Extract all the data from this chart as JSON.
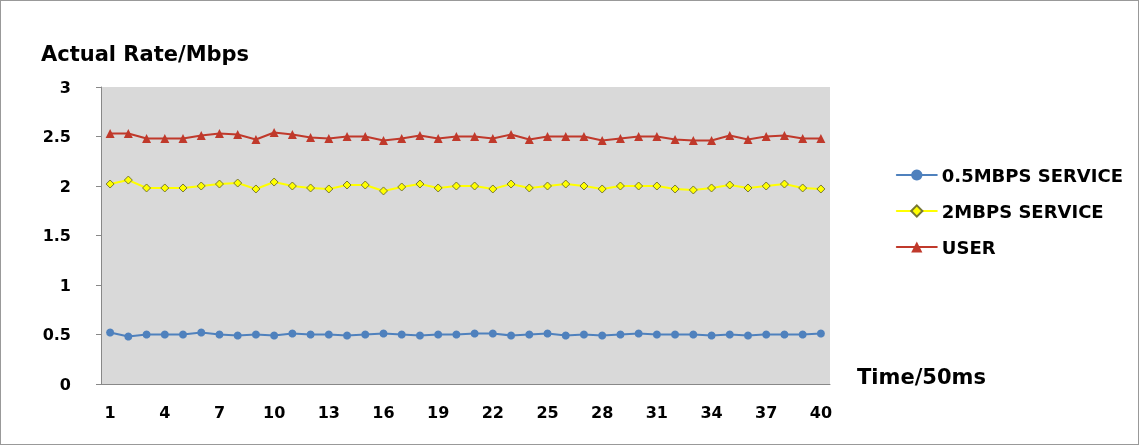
{
  "chart_data": {
    "type": "line",
    "ylabel": "Actual Rate/Mbps",
    "xlabel": "Time/50ms",
    "categories": [
      "1",
      null,
      null,
      "4",
      null,
      null,
      "7",
      null,
      null,
      "10",
      null,
      null,
      "13",
      null,
      null,
      "16",
      null,
      null,
      "19",
      null,
      null,
      "22",
      null,
      null,
      "25",
      null,
      null,
      "28",
      null,
      null,
      "31",
      null,
      null,
      "34",
      null,
      null,
      "37",
      null,
      null,
      "40"
    ],
    "series": [
      {
        "name": "0.5MBPS SERVICE",
        "color": "#4f81bd",
        "marker": "circle",
        "values": [
          0.52,
          0.48,
          0.5,
          0.5,
          0.5,
          0.52,
          0.5,
          0.49,
          0.5,
          0.49,
          0.51,
          0.5,
          0.5,
          0.49,
          0.5,
          0.51,
          0.5,
          0.49,
          0.5,
          0.5,
          0.51,
          0.51,
          0.49,
          0.5,
          0.51,
          0.49,
          0.5,
          0.49,
          0.5,
          0.51,
          0.5,
          0.5,
          0.5,
          0.49,
          0.5,
          0.49,
          0.5,
          0.5,
          0.5,
          0.51
        ]
      },
      {
        "name": "2MBPS SERVICE",
        "color": "#ffff00",
        "marker": "diamond",
        "values": [
          2.02,
          2.06,
          1.98,
          1.98,
          1.98,
          2.0,
          2.02,
          2.03,
          1.97,
          2.04,
          2.0,
          1.98,
          1.97,
          2.01,
          2.01,
          1.95,
          1.99,
          2.02,
          1.98,
          2.0,
          2.0,
          1.97,
          2.02,
          1.98,
          2.0,
          2.02,
          2.0,
          1.97,
          2.0,
          2.0,
          2.0,
          1.97,
          1.96,
          1.98,
          2.01,
          1.98,
          2.0,
          2.02,
          1.98,
          1.97
        ]
      },
      {
        "name": "USER",
        "color": "#c0392b",
        "marker": "triangle",
        "values": [
          2.53,
          2.53,
          2.48,
          2.48,
          2.48,
          2.51,
          2.53,
          2.52,
          2.47,
          2.54,
          2.52,
          2.49,
          2.48,
          2.5,
          2.5,
          2.46,
          2.48,
          2.51,
          2.48,
          2.5,
          2.5,
          2.48,
          2.52,
          2.47,
          2.5,
          2.5,
          2.5,
          2.46,
          2.48,
          2.5,
          2.5,
          2.47,
          2.46,
          2.46,
          2.51,
          2.47,
          2.5,
          2.51,
          2.48,
          2.48
        ]
      }
    ],
    "ylim": [
      0,
      3
    ],
    "yticks": [
      0,
      0.5,
      1,
      1.5,
      2,
      2.5,
      3
    ],
    "grid": false,
    "legend": "right",
    "line_style": "solid"
  }
}
